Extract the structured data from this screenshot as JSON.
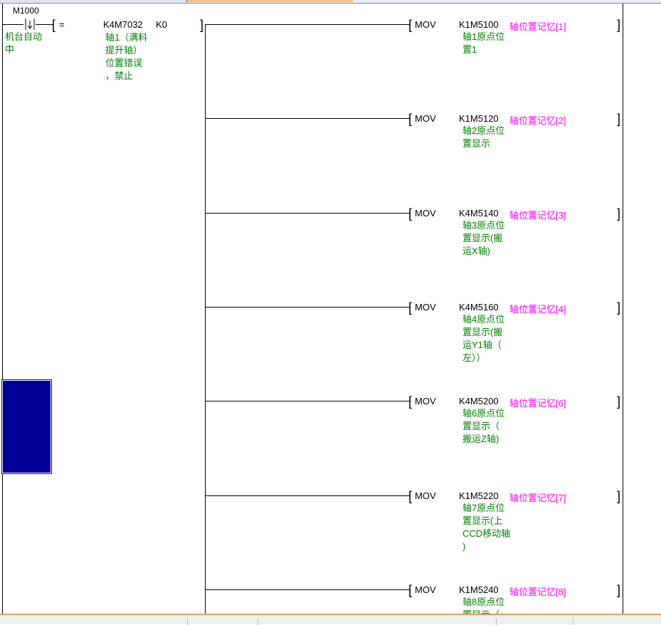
{
  "contact": {
    "device": "M1000",
    "comment": "机台自动\n中",
    "type": "falling-edge-contact"
  },
  "compare": {
    "operator": "=",
    "operand1": "K4M7032",
    "operand2": "K0",
    "comment": "轴1（满料\n提升轴）\n位置错误\n，禁止"
  },
  "instructions": [
    {
      "op": "MOV",
      "src": "K1M5100",
      "dst": "轴位置记忆[1]",
      "comment": "轴1原点位\n置1"
    },
    {
      "op": "MOV",
      "src": "K1M5120",
      "dst": "轴位置记忆[2]",
      "comment": "轴2原点位\n置显示"
    },
    {
      "op": "MOV",
      "src": "K4M5140",
      "dst": "轴位置记忆[3]",
      "comment": "轴3原点位\n置显示(搬\n运X轴)"
    },
    {
      "op": "MOV",
      "src": "K4M5160",
      "dst": "轴位置记忆[4]",
      "comment": "轴4原点位\n置显示(搬\n运Y1轴（\n左））"
    },
    {
      "op": "MOV",
      "src": "K4M5200",
      "dst": "轴位置记忆[6]",
      "comment": "轴6原点位\n置显示（\n搬运Z轴)"
    },
    {
      "op": "MOV",
      "src": "K1M5220",
      "dst": "轴位置记忆[7]",
      "comment": "轴7原点位\n置显示(上\nCCD移动轴\n)"
    },
    {
      "op": "MOV",
      "src": "K1M5240",
      "dst": "轴位置记忆[8]",
      "comment": "轴8原点位\n置显示（"
    }
  ],
  "colors": {
    "comment": "#008000",
    "label": "#ff00ff",
    "cursor": "#000099"
  }
}
